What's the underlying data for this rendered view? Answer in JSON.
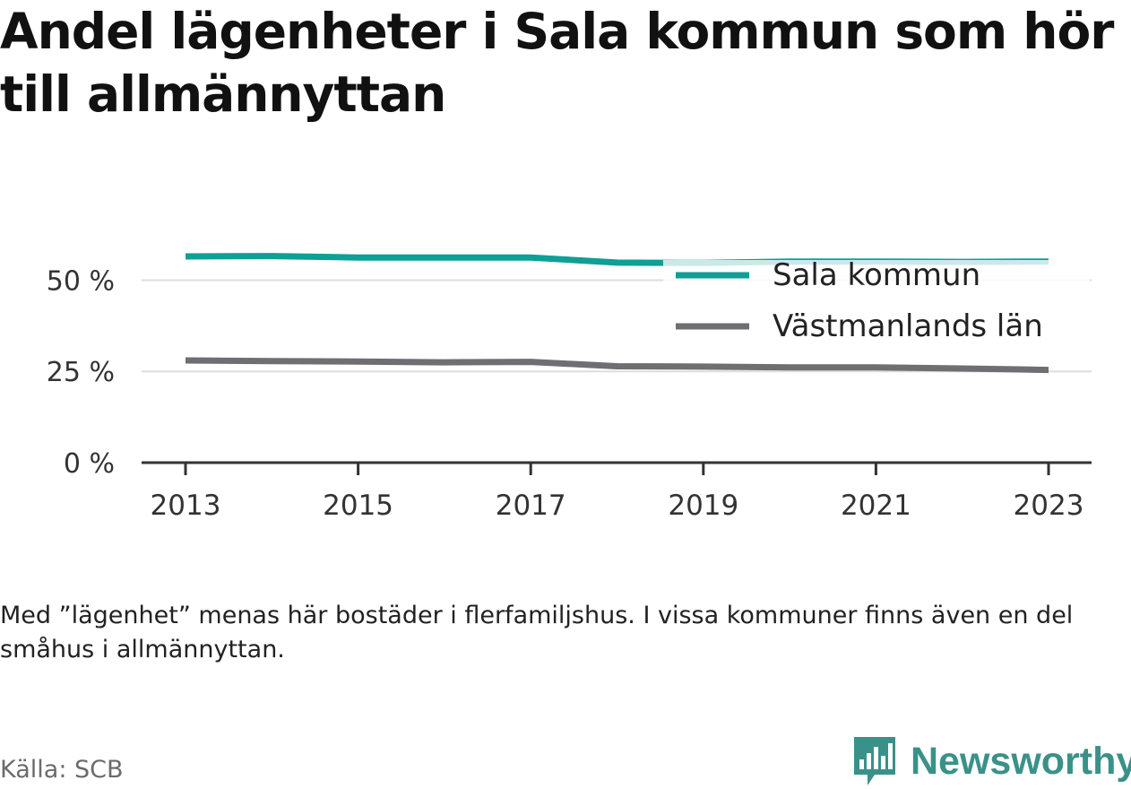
{
  "title": "Andel lägenheter i Sala kommun som hör till allmännyttan",
  "note": "Med ”lägenhet” menas här bostäder i flerfamiljshus. I vissa kommuner finns även en del småhus i allmännyttan.",
  "source": "Källa: SCB",
  "brand": {
    "name": "Newsworthy",
    "logo_icon": "bar-chart-speech-bubble-icon",
    "color": "#3a9189"
  },
  "chart_data": {
    "type": "line",
    "x": [
      2013,
      2014,
      2015,
      2016,
      2017,
      2018,
      2019,
      2020,
      2021,
      2022,
      2023
    ],
    "x_ticks": [
      "2013",
      "2015",
      "2017",
      "2019",
      "2021",
      "2023"
    ],
    "y_ticks": [
      "0 %",
      "25 %",
      "50 %"
    ],
    "ylim": [
      0,
      56.5
    ],
    "grid": true,
    "legend_position": "top-right",
    "series": [
      {
        "name": "Sala kommun",
        "color": "#0e9f96",
        "values": [
          56.5,
          56.6,
          56.2,
          56.2,
          56.2,
          54.8,
          54.7,
          55.1,
          55.1,
          55.0,
          55.1
        ]
      },
      {
        "name": "Västmanlands län",
        "color": "#6e6e73",
        "values": [
          28.0,
          27.8,
          27.7,
          27.5,
          27.6,
          26.4,
          26.3,
          26.1,
          26.1,
          25.8,
          25.4
        ]
      }
    ]
  }
}
